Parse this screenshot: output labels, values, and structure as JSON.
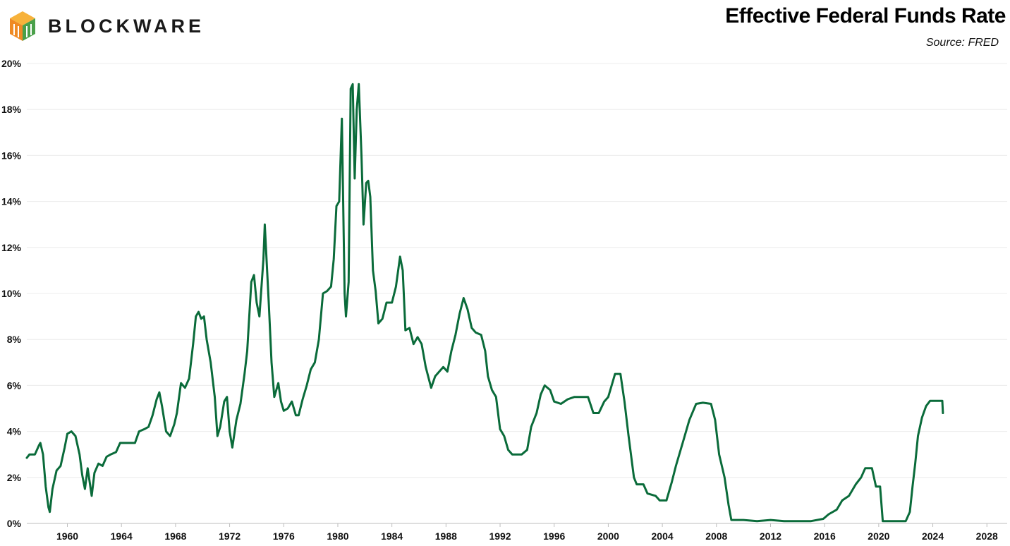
{
  "brand": {
    "name": "BLOCKWARE",
    "logo_icon": "blockware-cube-icon",
    "accent": "#f39a2a"
  },
  "header": {
    "title": "Effective Federal Funds Rate",
    "source": "Source: FRED"
  },
  "chart_data": {
    "type": "line",
    "title": "Effective Federal Funds Rate",
    "subtitle": "Source: FRED",
    "xlabel": "",
    "ylabel": "",
    "xlim": [
      1957.0,
      2029.5
    ],
    "ylim": [
      0,
      20
    ],
    "grid": true,
    "line_color": "#0a6b3a",
    "x_ticks": [
      1960,
      1964,
      1968,
      1972,
      1976,
      1980,
      1984,
      1988,
      1992,
      1996,
      2000,
      2004,
      2008,
      2012,
      2016,
      2020,
      2024,
      2028
    ],
    "y_ticks": [
      0,
      2,
      4,
      6,
      8,
      10,
      12,
      14,
      16,
      18,
      20
    ],
    "y_tick_labels": [
      "0%",
      "2%",
      "4%",
      "6%",
      "8%",
      "10%",
      "12%",
      "14%",
      "16%",
      "18%",
      "20%"
    ],
    "series": [
      {
        "values": [
          [
            1957.0,
            2.85
          ],
          [
            1957.2,
            3.0
          ],
          [
            1957.6,
            3.0
          ],
          [
            1957.9,
            3.4
          ],
          [
            1958.0,
            3.5
          ],
          [
            1958.2,
            3.0
          ],
          [
            1958.4,
            1.6
          ],
          [
            1958.6,
            0.7
          ],
          [
            1958.7,
            0.5
          ],
          [
            1958.9,
            1.5
          ],
          [
            1959.2,
            2.3
          ],
          [
            1959.5,
            2.5
          ],
          [
            1959.8,
            3.3
          ],
          [
            1960.0,
            3.9
          ],
          [
            1960.3,
            4.0
          ],
          [
            1960.6,
            3.8
          ],
          [
            1960.9,
            3.0
          ],
          [
            1961.1,
            2.1
          ],
          [
            1961.3,
            1.5
          ],
          [
            1961.5,
            2.4
          ],
          [
            1961.8,
            1.2
          ],
          [
            1962.0,
            2.2
          ],
          [
            1962.3,
            2.6
          ],
          [
            1962.6,
            2.5
          ],
          [
            1962.9,
            2.9
          ],
          [
            1963.2,
            3.0
          ],
          [
            1963.6,
            3.1
          ],
          [
            1963.9,
            3.5
          ],
          [
            1964.3,
            3.5
          ],
          [
            1964.7,
            3.5
          ],
          [
            1965.0,
            3.5
          ],
          [
            1965.3,
            4.0
          ],
          [
            1965.7,
            4.1
          ],
          [
            1966.0,
            4.2
          ],
          [
            1966.3,
            4.7
          ],
          [
            1966.6,
            5.4
          ],
          [
            1966.8,
            5.7
          ],
          [
            1967.0,
            5.1
          ],
          [
            1967.3,
            4.0
          ],
          [
            1967.6,
            3.8
          ],
          [
            1967.9,
            4.3
          ],
          [
            1968.1,
            4.8
          ],
          [
            1968.4,
            6.1
          ],
          [
            1968.7,
            5.9
          ],
          [
            1969.0,
            6.3
          ],
          [
            1969.3,
            7.8
          ],
          [
            1969.5,
            9.0
          ],
          [
            1969.7,
            9.2
          ],
          [
            1969.9,
            8.9
          ],
          [
            1970.1,
            9.0
          ],
          [
            1970.3,
            8.0
          ],
          [
            1970.6,
            7.0
          ],
          [
            1970.9,
            5.5
          ],
          [
            1971.1,
            3.8
          ],
          [
            1971.3,
            4.2
          ],
          [
            1971.6,
            5.3
          ],
          [
            1971.8,
            5.5
          ],
          [
            1972.0,
            4.0
          ],
          [
            1972.2,
            3.3
          ],
          [
            1972.5,
            4.5
          ],
          [
            1972.8,
            5.2
          ],
          [
            1973.1,
            6.5
          ],
          [
            1973.3,
            7.5
          ],
          [
            1973.6,
            10.5
          ],
          [
            1973.8,
            10.8
          ],
          [
            1974.0,
            9.6
          ],
          [
            1974.2,
            9.0
          ],
          [
            1974.5,
            11.5
          ],
          [
            1974.6,
            13.0
          ],
          [
            1974.9,
            9.5
          ],
          [
            1975.1,
            7.0
          ],
          [
            1975.3,
            5.5
          ],
          [
            1975.6,
            6.1
          ],
          [
            1975.8,
            5.3
          ],
          [
            1976.0,
            4.9
          ],
          [
            1976.3,
            5.0
          ],
          [
            1976.6,
            5.3
          ],
          [
            1976.9,
            4.7
          ],
          [
            1977.1,
            4.7
          ],
          [
            1977.4,
            5.4
          ],
          [
            1977.7,
            6.0
          ],
          [
            1978.0,
            6.7
          ],
          [
            1978.3,
            7.0
          ],
          [
            1978.6,
            8.0
          ],
          [
            1978.9,
            10.0
          ],
          [
            1979.2,
            10.1
          ],
          [
            1979.5,
            10.3
          ],
          [
            1979.7,
            11.5
          ],
          [
            1979.9,
            13.8
          ],
          [
            1980.1,
            14.0
          ],
          [
            1980.3,
            17.6
          ],
          [
            1980.5,
            10.0
          ],
          [
            1980.6,
            9.0
          ],
          [
            1980.8,
            10.5
          ],
          [
            1980.95,
            18.9
          ],
          [
            1981.1,
            19.1
          ],
          [
            1981.25,
            15.0
          ],
          [
            1981.4,
            18.0
          ],
          [
            1981.55,
            19.1
          ],
          [
            1981.75,
            16.0
          ],
          [
            1981.9,
            13.0
          ],
          [
            1982.1,
            14.8
          ],
          [
            1982.25,
            14.9
          ],
          [
            1982.4,
            14.2
          ],
          [
            1982.6,
            11.0
          ],
          [
            1982.8,
            10.1
          ],
          [
            1983.0,
            8.7
          ],
          [
            1983.3,
            8.9
          ],
          [
            1983.6,
            9.6
          ],
          [
            1984.0,
            9.6
          ],
          [
            1984.3,
            10.3
          ],
          [
            1984.6,
            11.6
          ],
          [
            1984.8,
            11.0
          ],
          [
            1985.0,
            8.4
          ],
          [
            1985.3,
            8.5
          ],
          [
            1985.6,
            7.8
          ],
          [
            1985.9,
            8.1
          ],
          [
            1986.2,
            7.8
          ],
          [
            1986.5,
            6.8
          ],
          [
            1986.9,
            5.9
          ],
          [
            1987.2,
            6.4
          ],
          [
            1987.5,
            6.6
          ],
          [
            1987.8,
            6.8
          ],
          [
            1988.1,
            6.6
          ],
          [
            1988.4,
            7.5
          ],
          [
            1988.7,
            8.2
          ],
          [
            1989.0,
            9.1
          ],
          [
            1989.3,
            9.8
          ],
          [
            1989.6,
            9.3
          ],
          [
            1989.9,
            8.5
          ],
          [
            1990.2,
            8.3
          ],
          [
            1990.6,
            8.2
          ],
          [
            1990.9,
            7.5
          ],
          [
            1991.1,
            6.4
          ],
          [
            1991.4,
            5.8
          ],
          [
            1991.7,
            5.5
          ],
          [
            1992.0,
            4.1
          ],
          [
            1992.3,
            3.8
          ],
          [
            1992.6,
            3.2
          ],
          [
            1992.9,
            3.0
          ],
          [
            1993.3,
            3.0
          ],
          [
            1993.6,
            3.0
          ],
          [
            1994.0,
            3.2
          ],
          [
            1994.3,
            4.2
          ],
          [
            1994.7,
            4.8
          ],
          [
            1995.0,
            5.6
          ],
          [
            1995.3,
            6.0
          ],
          [
            1995.7,
            5.8
          ],
          [
            1996.0,
            5.3
          ],
          [
            1996.5,
            5.2
          ],
          [
            1997.0,
            5.4
          ],
          [
            1997.5,
            5.5
          ],
          [
            1998.0,
            5.5
          ],
          [
            1998.5,
            5.5
          ],
          [
            1998.9,
            4.8
          ],
          [
            1999.3,
            4.8
          ],
          [
            1999.7,
            5.3
          ],
          [
            2000.0,
            5.5
          ],
          [
            2000.3,
            6.1
          ],
          [
            2000.5,
            6.5
          ],
          [
            2000.9,
            6.5
          ],
          [
            2001.2,
            5.3
          ],
          [
            2001.5,
            3.8
          ],
          [
            2001.9,
            2.0
          ],
          [
            2002.1,
            1.7
          ],
          [
            2002.6,
            1.7
          ],
          [
            2002.9,
            1.3
          ],
          [
            2003.5,
            1.2
          ],
          [
            2003.8,
            1.0
          ],
          [
            2004.3,
            1.0
          ],
          [
            2004.7,
            1.8
          ],
          [
            2005.0,
            2.5
          ],
          [
            2005.5,
            3.5
          ],
          [
            2006.0,
            4.5
          ],
          [
            2006.5,
            5.2
          ],
          [
            2007.0,
            5.25
          ],
          [
            2007.6,
            5.2
          ],
          [
            2007.9,
            4.5
          ],
          [
            2008.2,
            3.0
          ],
          [
            2008.6,
            2.0
          ],
          [
            2008.9,
            0.8
          ],
          [
            2009.1,
            0.15
          ],
          [
            2010.0,
            0.15
          ],
          [
            2011.0,
            0.1
          ],
          [
            2012.0,
            0.15
          ],
          [
            2013.0,
            0.1
          ],
          [
            2014.0,
            0.1
          ],
          [
            2015.0,
            0.1
          ],
          [
            2015.9,
            0.2
          ],
          [
            2016.3,
            0.4
          ],
          [
            2016.9,
            0.6
          ],
          [
            2017.3,
            1.0
          ],
          [
            2017.8,
            1.2
          ],
          [
            2018.3,
            1.7
          ],
          [
            2018.7,
            2.0
          ],
          [
            2019.0,
            2.4
          ],
          [
            2019.5,
            2.4
          ],
          [
            2019.8,
            1.6
          ],
          [
            2020.1,
            1.6
          ],
          [
            2020.3,
            0.1
          ],
          [
            2021.0,
            0.1
          ],
          [
            2022.0,
            0.1
          ],
          [
            2022.3,
            0.5
          ],
          [
            2022.5,
            1.6
          ],
          [
            2022.7,
            2.6
          ],
          [
            2022.9,
            3.8
          ],
          [
            2023.2,
            4.6
          ],
          [
            2023.5,
            5.1
          ],
          [
            2023.8,
            5.33
          ],
          [
            2024.3,
            5.33
          ],
          [
            2024.7,
            5.33
          ],
          [
            2024.75,
            4.8
          ]
        ]
      }
    ]
  }
}
